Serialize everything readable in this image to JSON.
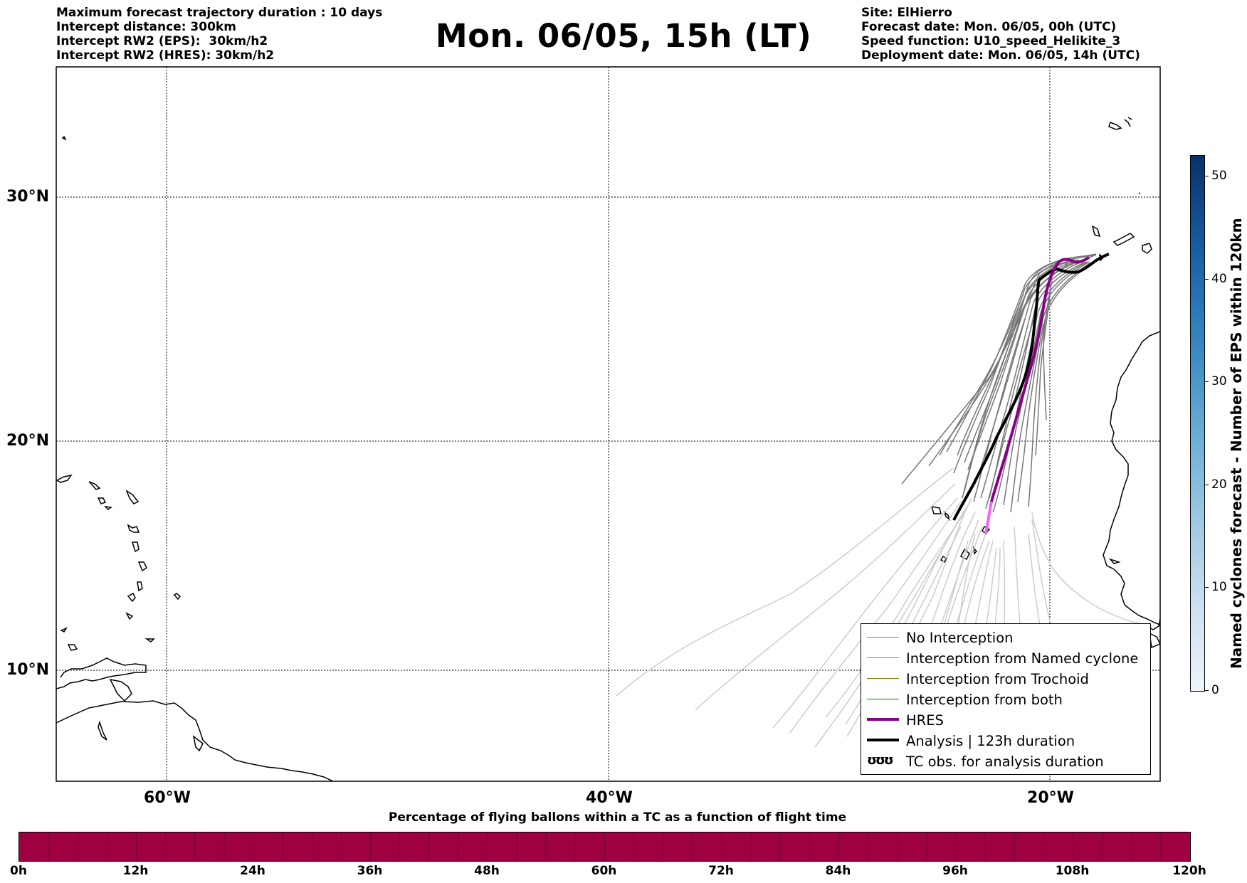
{
  "header_left": [
    "Maximum forecast trajectory duration : 10 days",
    "Intercept distance: 300km",
    "Intercept RW2 (EPS):  30km/h2",
    "Intercept RW2 (HRES): 30km/h2"
  ],
  "title": "Mon. 06/05, 15h (LT)",
  "header_right": [
    "Site: ElHierro",
    "Forecast date: Mon. 06/05, 00h (UTC)",
    "Speed function: U10_speed_Helikite_3",
    "Deployment date: Mon. 06/05, 14h (UTC)"
  ],
  "map": {
    "lat_labels": [
      "30°N",
      "20°N",
      "10°N"
    ],
    "lon_labels": [
      "60°W",
      "40°W",
      "20°W"
    ],
    "colors": {
      "no_interception": "#777777",
      "named_cyclone": "#ff5500",
      "trochoid": "#808000",
      "both": "#008000",
      "hres": "#880088",
      "hres_tail": "#ee66ee",
      "analysis": "#000000",
      "faded_tracks": "#cccccc"
    }
  },
  "legend": {
    "items": [
      {
        "label": "No Interception",
        "color": "#777777",
        "style": "thin"
      },
      {
        "label": "Interception from Named cyclone",
        "color": "#ff5500",
        "style": "thin"
      },
      {
        "label": "Interception from Trochoid",
        "color": "#808000",
        "style": "thin"
      },
      {
        "label": "Interception from both",
        "color": "#008000",
        "style": "thin"
      },
      {
        "label": "HRES",
        "color": "#880088",
        "style": "thick"
      },
      {
        "label": "Analysis | 123h duration",
        "color": "#000000",
        "style": "thick"
      },
      {
        "label": "TC obs. for analysis duration",
        "color": "#000000",
        "style": "symbol",
        "symbol": "ʊʊʊ"
      }
    ]
  },
  "colorbar_vertical": {
    "label": "Named cyclones forecast - Number of EPS within 120km",
    "ticks": [
      "0",
      "10",
      "20",
      "30",
      "40",
      "50"
    ],
    "max": 52
  },
  "colorbar_horizontal": {
    "title": "Percentage of flying ballons within a TC as a function of flight time",
    "ticks": [
      "0h",
      "12h",
      "24h",
      "36h",
      "48h",
      "60h",
      "72h",
      "84h",
      "96h",
      "108h",
      "120h"
    ],
    "color": "#9e0040"
  }
}
